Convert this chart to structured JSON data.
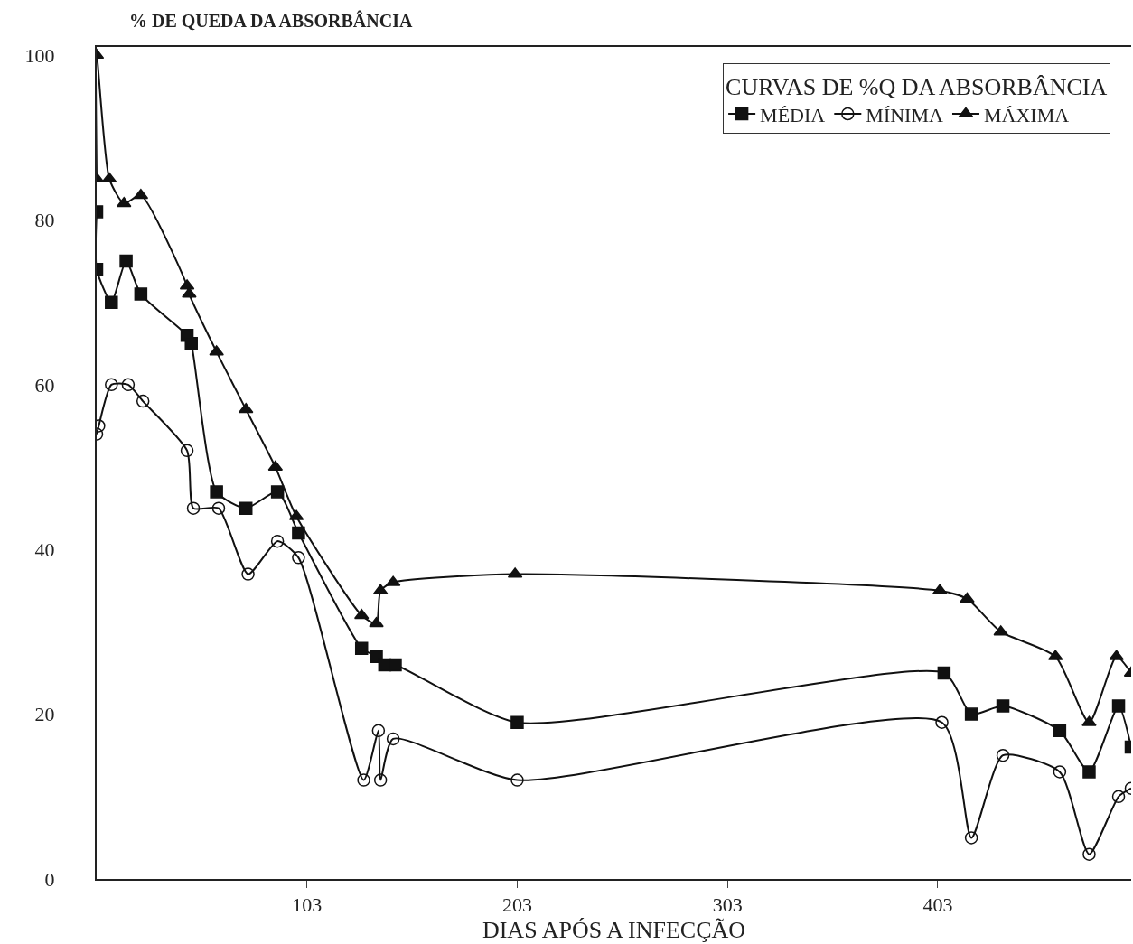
{
  "chart_data": {
    "type": "line",
    "ylabel": "% DE QUEDA DA ABSORBÂNCIA",
    "xlabel": "DIAS APÓS A INFECÇÃO",
    "legend_title": "CURVAS DE %Q DA ABSORBÂNCIA",
    "legend": "top right",
    "xlim": [
      3,
      495
    ],
    "xticks": [
      103,
      203,
      303,
      403
    ],
    "ylim": [
      0,
      101
    ],
    "yticks": [
      0,
      20,
      40,
      60,
      80,
      100
    ],
    "series": [
      {
        "name": "MÉDIA",
        "color": "#111111",
        "marker": "square",
        "x": [
          3,
          3,
          10,
          17,
          24,
          46,
          48,
          60,
          74,
          89,
          99,
          129,
          136,
          140,
          145,
          203,
          406,
          419,
          434,
          461,
          475,
          489,
          495
        ],
        "values": [
          81,
          74,
          70,
          75,
          71,
          66,
          65,
          47,
          45,
          47,
          42,
          28,
          27,
          26,
          26,
          19,
          25,
          20,
          21,
          18,
          13,
          21,
          16
        ]
      },
      {
        "name": "MÍNIMA",
        "color": "#111111",
        "marker": "circle",
        "x": [
          3,
          4,
          10,
          18,
          25,
          46,
          49,
          61,
          75,
          89,
          99,
          130,
          137,
          138,
          144,
          203,
          405,
          419,
          434,
          461,
          475,
          489,
          495
        ],
        "values": [
          54,
          55,
          60,
          60,
          58,
          52,
          45,
          45,
          37,
          41,
          39,
          12,
          18,
          12,
          17,
          12,
          19,
          5,
          15,
          13,
          3,
          10,
          11
        ]
      },
      {
        "name": "MÁXIMA",
        "color": "#111111",
        "marker": "triangle",
        "x": [
          3,
          3,
          9,
          16,
          24,
          46,
          47,
          60,
          74,
          88,
          98,
          129,
          136,
          138,
          144,
          202,
          404,
          417,
          433,
          459,
          475,
          488,
          495
        ],
        "values": [
          85,
          100,
          85,
          82,
          83,
          72,
          71,
          64,
          57,
          50,
          44,
          32,
          31,
          35,
          36,
          37,
          35,
          34,
          30,
          27,
          19,
          27,
          25
        ]
      }
    ]
  }
}
